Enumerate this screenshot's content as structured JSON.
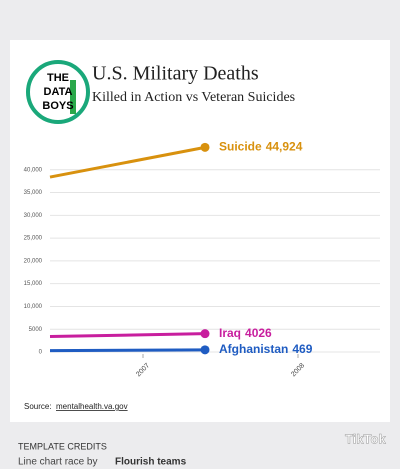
{
  "chart_data": {
    "type": "line",
    "title": "U.S. Military Deaths",
    "subtitle": "Killed in Action vs Veteran Suicides",
    "logo": [
      "THE",
      "DATA",
      "BOYS"
    ],
    "x": [
      2006.4,
      2007.4
    ],
    "xlim": [
      2006.4,
      2008.4
    ],
    "xticks": [
      2007,
      2008
    ],
    "ylim": [
      0,
      45000
    ],
    "yticks": [
      0,
      5000,
      {
        "value": 10000,
        "label": "10,000"
      },
      {
        "value": 15000,
        "label": "15,000"
      },
      {
        "value": 20000,
        "label": "20,000"
      },
      {
        "value": 25000,
        "label": "25,000"
      },
      {
        "value": 30000,
        "label": "30,000"
      },
      {
        "value": 35000,
        "label": "35,000"
      },
      {
        "value": 40000,
        "label": "40,000"
      }
    ],
    "grid": true,
    "series": [
      {
        "name": "Suicide",
        "color": "#d8910e",
        "values": [
          38400,
          44924
        ],
        "value_labels": [
          null,
          "44,924"
        ]
      },
      {
        "name": "Iraq",
        "color": "#c81e9e",
        "values": [
          3400,
          4026
        ]
      },
      {
        "name": "Afghanistan",
        "color": "#1f5cc2",
        "values": [
          300,
          469
        ]
      }
    ],
    "source_label": "Source:",
    "source": "mentalhealth.va.gov",
    "credits_title": "TEMPLATE CREDITS",
    "credits_text": "Line chart race by",
    "credits_bold": "Flourish teams",
    "watermark": "TikTok"
  }
}
